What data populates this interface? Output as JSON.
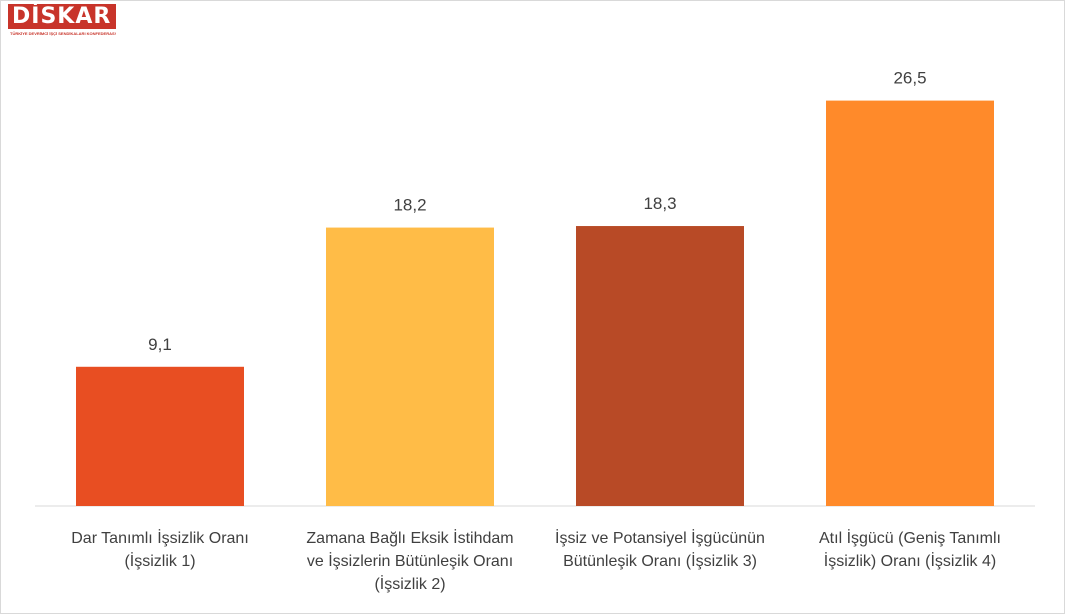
{
  "logo": {
    "text": "DİSKAR",
    "subtitle": "TÜRKİYE DEVRİMCİ İŞÇİ SENDİKALARI KONFEDERASYONU ARAŞTIRMA MERKEZİ"
  },
  "colors": {
    "bar_1": "#e84e22",
    "bar_2": "#ffbc47",
    "bar_3": "#b84a26",
    "bar_4": "#ff8a2a"
  },
  "chart_data": {
    "type": "bar",
    "categories": [
      [
        "Dar Tanımlı İşsizlik Oranı",
        "(İşsizlik 1)"
      ],
      [
        "Zamana Bağlı Eksik İstihdam",
        "ve İşsizlerin Bütünleşik Oranı",
        "(İşsizlik 2)"
      ],
      [
        "İşsiz ve Potansiyel İşgücünün",
        "Bütünleşik Oranı (İşsizlik 3)"
      ],
      [
        "Atıl İşgücü (Geniş Tanımlı",
        "İşsizlik) Oranı (İşsizlik 4)"
      ]
    ],
    "values": [
      9.1,
      18.2,
      18.3,
      26.5
    ],
    "value_labels": [
      "9,1",
      "18,2",
      "18,3",
      "26,5"
    ],
    "ylim": [
      0,
      28.5
    ],
    "grid": false,
    "legend": "none"
  }
}
